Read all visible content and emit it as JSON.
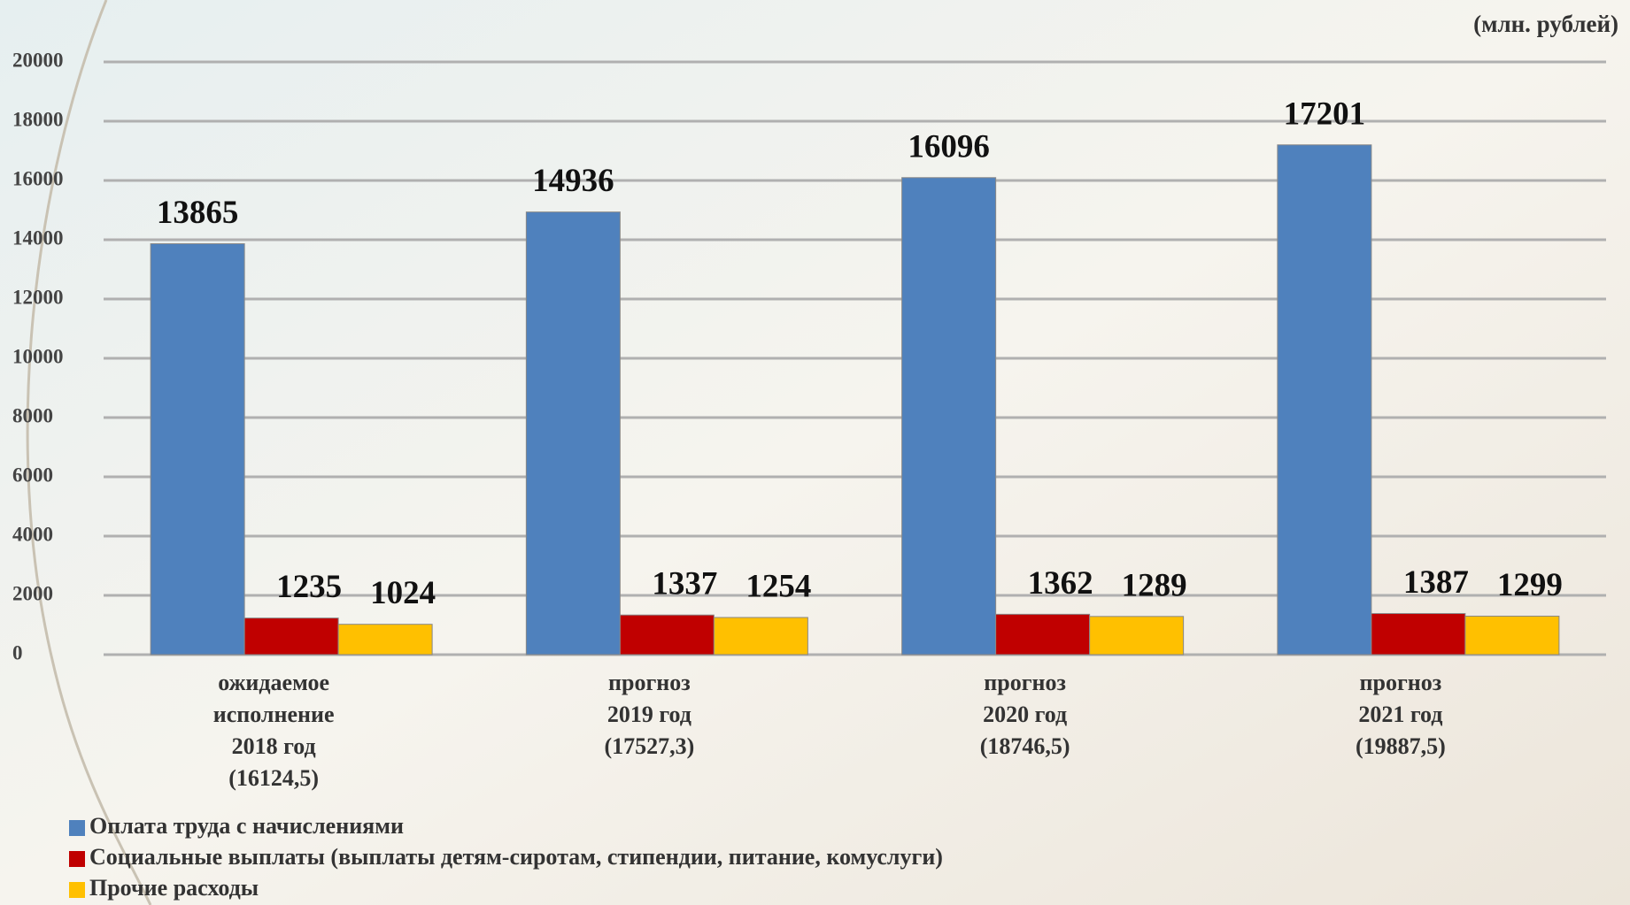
{
  "chart_data": {
    "type": "bar",
    "unit_note": "(млн. рублей)",
    "categories": [
      [
        "ожидаемое",
        "исполнение",
        "2018 год",
        "(16124,5)"
      ],
      [
        "прогноз",
        "2019 год",
        "(17527,3)"
      ],
      [
        "прогноз",
        "2020 год",
        "(18746,5)"
      ],
      [
        "прогноз",
        "2021 год",
        "(19887,5)"
      ]
    ],
    "series": [
      {
        "name": "Оплата труда с начислениями",
        "color": "#4f81bd",
        "values": [
          13865,
          14936,
          16096,
          17201
        ]
      },
      {
        "name": "Социальные выплаты (выплаты детям-сиротам, стипендии, питание, комуслуги)",
        "color": "#c00000",
        "values": [
          1235,
          1337,
          1362,
          1387
        ]
      },
      {
        "name": "Прочие расходы",
        "color": "#ffc000",
        "values": [
          1024,
          1254,
          1289,
          1299
        ]
      }
    ],
    "ylim": [
      0,
      20000
    ],
    "yticks": [
      0,
      2000,
      4000,
      6000,
      8000,
      10000,
      12000,
      14000,
      16000,
      18000,
      20000
    ],
    "grid": true,
    "legend": "bottom-left"
  }
}
